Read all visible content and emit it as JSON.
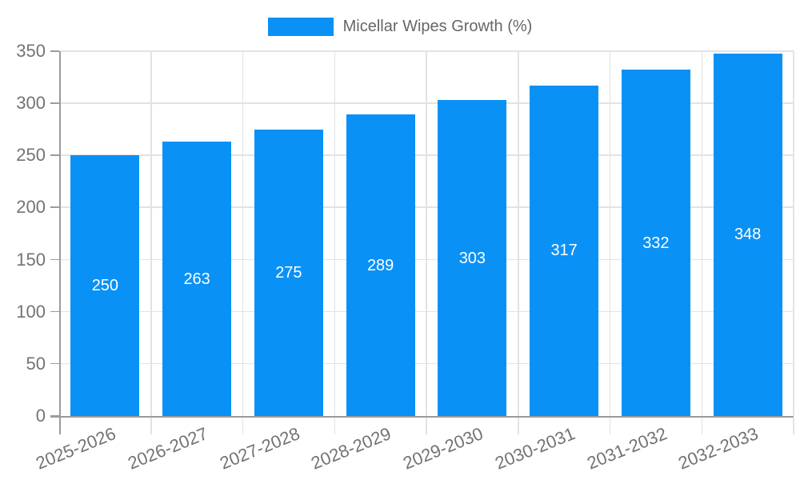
{
  "legend": {
    "label": "Micellar Wipes Growth (%)"
  },
  "colors": {
    "bar": "#0A91F6",
    "grid": "#E3E3E3",
    "axis": "#9B9B9B",
    "tick_text": "#737373",
    "legend_text": "#666666",
    "value_text": "#FFFFFF",
    "background": "#FFFFFF"
  },
  "chart_data": {
    "type": "bar",
    "title": "Micellar Wipes Growth (%)",
    "categories": [
      "2025-2026",
      "2026-2027",
      "2027-2028",
      "2028-2029",
      "2029-2030",
      "2030-2031",
      "2031-2032",
      "2032-2033"
    ],
    "values": [
      250,
      263,
      275,
      289,
      303,
      317,
      332,
      348
    ],
    "xlabel": "",
    "ylabel": "",
    "ylim": [
      0,
      350
    ],
    "ytick_step": 50,
    "grid": true,
    "legend_position": "top",
    "bar_fraction": 0.75,
    "x_label_rotation_deg": -22,
    "value_label_position": "inside-center"
  }
}
